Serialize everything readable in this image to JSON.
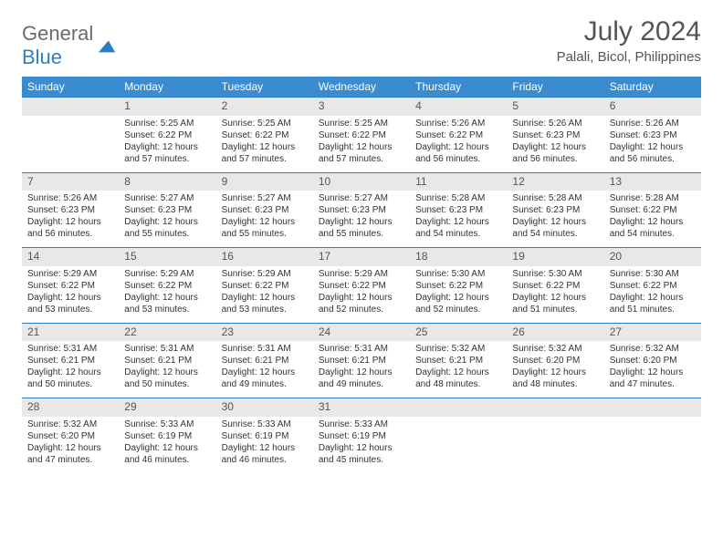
{
  "logo": {
    "line1": "General",
    "line2": "Blue"
  },
  "title": "July 2024",
  "location": "Palali, Bicol, Philippines",
  "colors": {
    "header_bg": "#3a8bd0",
    "header_text": "#ffffff",
    "daynum_bg": "#e8e8e8",
    "rule": "#2d7dc4",
    "text": "#333333",
    "title_text": "#555555",
    "logo_gray": "#6b6b6b",
    "logo_blue": "#2d7dc4",
    "page_bg": "#ffffff"
  },
  "headers": [
    "Sunday",
    "Monday",
    "Tuesday",
    "Wednesday",
    "Thursday",
    "Friday",
    "Saturday"
  ],
  "weeks": [
    [
      null,
      {
        "d": "1",
        "sr": "5:25 AM",
        "ss": "6:22 PM",
        "dl": "12 hours and 57 minutes."
      },
      {
        "d": "2",
        "sr": "5:25 AM",
        "ss": "6:22 PM",
        "dl": "12 hours and 57 minutes."
      },
      {
        "d": "3",
        "sr": "5:25 AM",
        "ss": "6:22 PM",
        "dl": "12 hours and 57 minutes."
      },
      {
        "d": "4",
        "sr": "5:26 AM",
        "ss": "6:22 PM",
        "dl": "12 hours and 56 minutes."
      },
      {
        "d": "5",
        "sr": "5:26 AM",
        "ss": "6:23 PM",
        "dl": "12 hours and 56 minutes."
      },
      {
        "d": "6",
        "sr": "5:26 AM",
        "ss": "6:23 PM",
        "dl": "12 hours and 56 minutes."
      }
    ],
    [
      {
        "d": "7",
        "sr": "5:26 AM",
        "ss": "6:23 PM",
        "dl": "12 hours and 56 minutes."
      },
      {
        "d": "8",
        "sr": "5:27 AM",
        "ss": "6:23 PM",
        "dl": "12 hours and 55 minutes."
      },
      {
        "d": "9",
        "sr": "5:27 AM",
        "ss": "6:23 PM",
        "dl": "12 hours and 55 minutes."
      },
      {
        "d": "10",
        "sr": "5:27 AM",
        "ss": "6:23 PM",
        "dl": "12 hours and 55 minutes."
      },
      {
        "d": "11",
        "sr": "5:28 AM",
        "ss": "6:23 PM",
        "dl": "12 hours and 54 minutes."
      },
      {
        "d": "12",
        "sr": "5:28 AM",
        "ss": "6:23 PM",
        "dl": "12 hours and 54 minutes."
      },
      {
        "d": "13",
        "sr": "5:28 AM",
        "ss": "6:22 PM",
        "dl": "12 hours and 54 minutes."
      }
    ],
    [
      {
        "d": "14",
        "sr": "5:29 AM",
        "ss": "6:22 PM",
        "dl": "12 hours and 53 minutes."
      },
      {
        "d": "15",
        "sr": "5:29 AM",
        "ss": "6:22 PM",
        "dl": "12 hours and 53 minutes."
      },
      {
        "d": "16",
        "sr": "5:29 AM",
        "ss": "6:22 PM",
        "dl": "12 hours and 53 minutes."
      },
      {
        "d": "17",
        "sr": "5:29 AM",
        "ss": "6:22 PM",
        "dl": "12 hours and 52 minutes."
      },
      {
        "d": "18",
        "sr": "5:30 AM",
        "ss": "6:22 PM",
        "dl": "12 hours and 52 minutes."
      },
      {
        "d": "19",
        "sr": "5:30 AM",
        "ss": "6:22 PM",
        "dl": "12 hours and 51 minutes."
      },
      {
        "d": "20",
        "sr": "5:30 AM",
        "ss": "6:22 PM",
        "dl": "12 hours and 51 minutes."
      }
    ],
    [
      {
        "d": "21",
        "sr": "5:31 AM",
        "ss": "6:21 PM",
        "dl": "12 hours and 50 minutes."
      },
      {
        "d": "22",
        "sr": "5:31 AM",
        "ss": "6:21 PM",
        "dl": "12 hours and 50 minutes."
      },
      {
        "d": "23",
        "sr": "5:31 AM",
        "ss": "6:21 PM",
        "dl": "12 hours and 49 minutes."
      },
      {
        "d": "24",
        "sr": "5:31 AM",
        "ss": "6:21 PM",
        "dl": "12 hours and 49 minutes."
      },
      {
        "d": "25",
        "sr": "5:32 AM",
        "ss": "6:21 PM",
        "dl": "12 hours and 48 minutes."
      },
      {
        "d": "26",
        "sr": "5:32 AM",
        "ss": "6:20 PM",
        "dl": "12 hours and 48 minutes."
      },
      {
        "d": "27",
        "sr": "5:32 AM",
        "ss": "6:20 PM",
        "dl": "12 hours and 47 minutes."
      }
    ],
    [
      {
        "d": "28",
        "sr": "5:32 AM",
        "ss": "6:20 PM",
        "dl": "12 hours and 47 minutes."
      },
      {
        "d": "29",
        "sr": "5:33 AM",
        "ss": "6:19 PM",
        "dl": "12 hours and 46 minutes."
      },
      {
        "d": "30",
        "sr": "5:33 AM",
        "ss": "6:19 PM",
        "dl": "12 hours and 46 minutes."
      },
      {
        "d": "31",
        "sr": "5:33 AM",
        "ss": "6:19 PM",
        "dl": "12 hours and 45 minutes."
      },
      null,
      null,
      null
    ]
  ],
  "labels": {
    "sunrise": "Sunrise: ",
    "sunset": "Sunset: ",
    "daylight": "Daylight: "
  }
}
